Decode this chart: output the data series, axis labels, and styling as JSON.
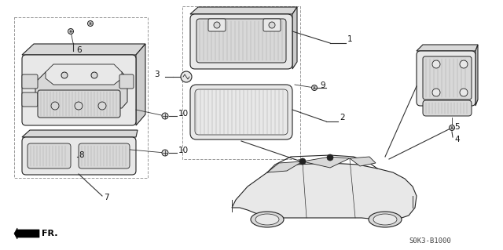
{
  "bg_color": "#ffffff",
  "part_number": "S0K3-B1000",
  "diagram_color": "#222222",
  "line_color": "#333333",
  "text_color": "#111111",
  "gray_fill": "#e8e8e8",
  "gray_dark": "#cccccc",
  "gray_mid": "#d8d8d8",
  "hatch_color": "#aaaaaa",
  "dashed_box_color": "#999999",
  "fs_label": 7.5,
  "fs_part": 6.0
}
